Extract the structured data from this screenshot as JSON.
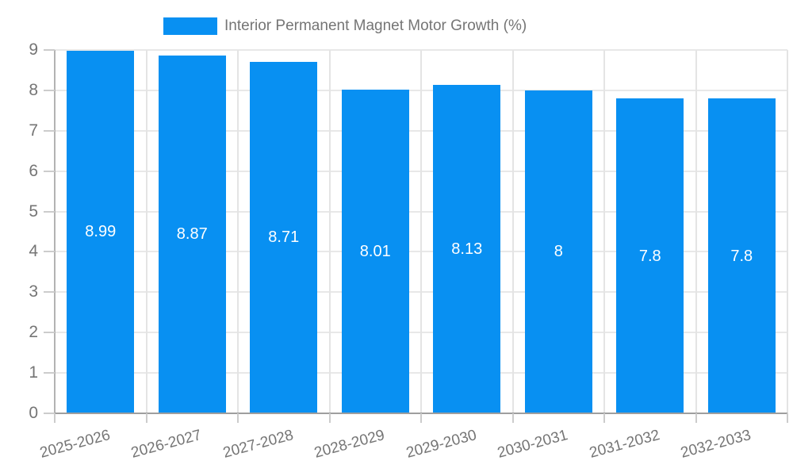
{
  "chart_data": {
    "type": "bar",
    "title": "",
    "legend": {
      "label": "Interior Permanent Magnet Motor Growth (%)",
      "position": "top"
    },
    "categories": [
      "2025-2026",
      "2026-2027",
      "2027-2028",
      "2028-2029",
      "2029-2030",
      "2030-2031",
      "2031-2032",
      "2032-2033"
    ],
    "values": [
      8.99,
      8.87,
      8.71,
      8.01,
      8.13,
      8,
      7.8,
      7.8
    ],
    "value_labels": [
      "8.99",
      "8.87",
      "8.71",
      "8.01",
      "8.13",
      "8",
      "7.8",
      "7.8"
    ],
    "xlabel": "",
    "ylabel": "",
    "ylim": [
      0,
      9
    ],
    "y_ticks": [
      0,
      1,
      2,
      3,
      4,
      5,
      6,
      7,
      8,
      9
    ],
    "y_tick_labels": [
      "0",
      "1",
      "2",
      "3",
      "4",
      "5",
      "6",
      "7",
      "8",
      "9"
    ],
    "grid": true,
    "x_label_rotation_deg": -15,
    "colors": {
      "bar": "#0890f2",
      "grid": "#e8e8e8",
      "axis": "#9e9e9e",
      "tick": "#cccccc",
      "text": "#757575",
      "bar_label": "#ffffff",
      "background": "#ffffff"
    }
  }
}
